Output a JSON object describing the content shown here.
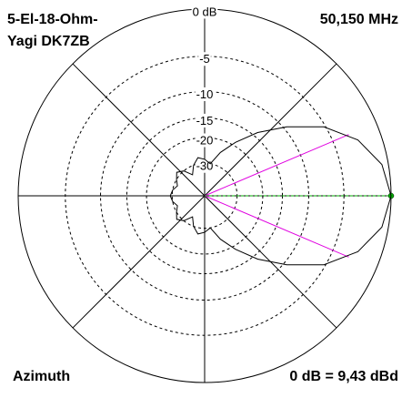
{
  "chart_data": {
    "type": "polar",
    "title_lines": [
      "5-El-18-Ohm-",
      "Yagi DK7ZB"
    ],
    "frequency": "50,150 MHz",
    "plane": "Azimuth",
    "reference": "0 dB = 9,43 dBd",
    "scale": "arrl-log",
    "rticks": [
      {
        "value": 0,
        "label": "0 dB"
      },
      -5,
      -10,
      -15,
      -20,
      -30
    ],
    "rlim": [
      -40,
      0
    ],
    "angles": [
      0,
      10,
      20,
      30,
      40,
      50,
      60,
      70,
      80,
      90,
      100,
      110,
      120,
      130,
      140,
      150,
      160,
      170,
      180,
      190,
      200,
      210,
      220,
      230,
      240,
      250,
      260,
      270,
      280,
      290,
      300,
      310,
      320,
      330,
      340,
      350
    ],
    "series": [
      {
        "color": "#000000",
        "values": [
          0,
          -0.6,
          -2.3,
          -5.2,
          -9.5,
          -14,
          -19,
          -24,
          -30,
          -28,
          -27,
          -30,
          -35,
          -30,
          -28,
          -30,
          -32,
          -30,
          -29,
          -30,
          -32,
          -30,
          -28,
          -30,
          -35,
          -30,
          -27,
          -28,
          -30,
          -24,
          -19,
          -14,
          -9.5,
          -5.2,
          -2.3,
          -0.6
        ]
      }
    ],
    "half_power_angles": [
      23,
      -23
    ],
    "half_power_color": "#e000e0",
    "max_angle": 0,
    "max_color": "#00b000"
  }
}
